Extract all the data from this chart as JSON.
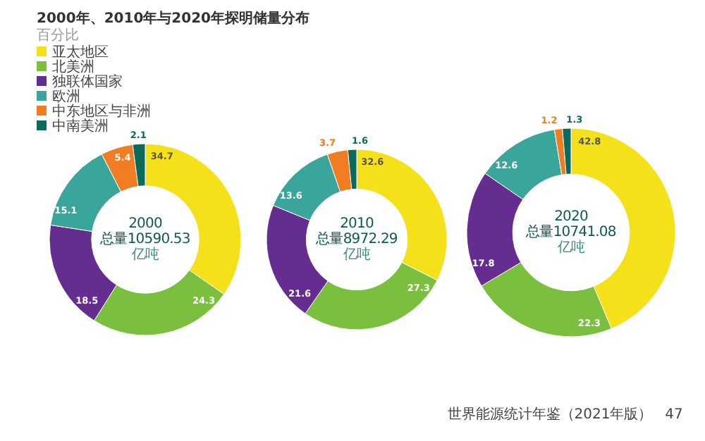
{
  "chart_data": [
    {
      "type": "donut",
      "title": "2000年、2010年与2020年探明储量分布",
      "subtitle": "百分比",
      "categories": [
        "亚太地区",
        "北美洲",
        "独联体国家",
        "欧洲",
        "中东地区与非洲",
        "中南美洲"
      ],
      "values": [
        34.7,
        24.3,
        18.5,
        15.1,
        5.4,
        2.1
      ],
      "colors": [
        "#f5e11a",
        "#7bbf3e",
        "#662d91",
        "#3aa59a",
        "#f07d22",
        "#0b6b5a"
      ],
      "data_labels": true,
      "legend": "top left",
      "annotations": [
        "2000",
        "总量10590.53",
        "亿吨"
      ]
    },
    {
      "type": "donut",
      "categories": [
        null,
        null,
        null,
        null,
        null,
        null
      ],
      "values": [
        32.6,
        27.3,
        21.6,
        13.6,
        3.7,
        1.6
      ],
      "colors": [
        "#f5e11a",
        "#7bbf3e",
        "#662d91",
        "#3aa59a",
        "#f07d22",
        "#0b6b5a"
      ],
      "data_labels": true,
      "annotations": [
        "2010",
        "总量8972.29",
        "亿吨"
      ]
    },
    {
      "type": "donut",
      "categories": [
        null,
        null,
        null,
        null,
        null,
        null
      ],
      "values": [
        42.8,
        22.3,
        17.8,
        12.6,
        1.2,
        1.3
      ],
      "colors": [
        "#f5e11a",
        "#7bbf3e",
        "#662d91",
        "#3aa59a",
        "#f07d22",
        "#0b6b5a"
      ],
      "data_labels": true,
      "annotations": [
        "2020",
        "总量10741.08",
        "亿吨",
        "世界能源统计年鉴（2021年版）",
        "47"
      ]
    }
  ]
}
